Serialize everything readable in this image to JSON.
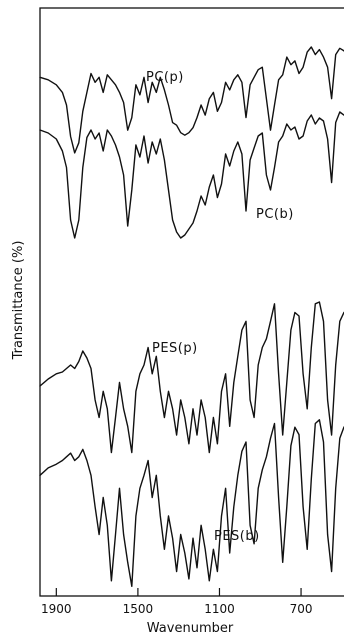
{
  "chart_data": {
    "type": "line",
    "xlabel": "Wavenumber",
    "ylabel": "Transmittance (%)",
    "xlim": [
      1980,
      460
    ],
    "x_ticks": [
      1900,
      1500,
      1100,
      700
    ],
    "x_tick_labels": [
      "1900",
      "1500",
      "1100",
      "700"
    ],
    "series": [
      {
        "name": "PC(p)",
        "label": "PC(p)",
        "x": [
          1980,
          1940,
          1900,
          1870,
          1850,
          1830,
          1810,
          1790,
          1770,
          1750,
          1730,
          1710,
          1690,
          1670,
          1650,
          1630,
          1610,
          1590,
          1570,
          1550,
          1530,
          1510,
          1490,
          1470,
          1450,
          1430,
          1410,
          1390,
          1370,
          1350,
          1330,
          1310,
          1290,
          1270,
          1250,
          1230,
          1210,
          1190,
          1170,
          1150,
          1130,
          1110,
          1090,
          1070,
          1050,
          1030,
          1010,
          990,
          970,
          950,
          930,
          910,
          890,
          870,
          850,
          830,
          810,
          790,
          770,
          750,
          730,
          710,
          690,
          670,
          650,
          630,
          610,
          590,
          570,
          550,
          530,
          510,
          490,
          470,
          460
        ],
        "y": [
          0.72,
          0.7,
          0.66,
          0.6,
          0.5,
          0.25,
          0.12,
          0.2,
          0.45,
          0.6,
          0.75,
          0.68,
          0.72,
          0.6,
          0.74,
          0.7,
          0.66,
          0.6,
          0.52,
          0.3,
          0.4,
          0.66,
          0.58,
          0.72,
          0.52,
          0.68,
          0.6,
          0.72,
          0.62,
          0.5,
          0.36,
          0.34,
          0.28,
          0.26,
          0.28,
          0.32,
          0.4,
          0.5,
          0.42,
          0.55,
          0.6,
          0.45,
          0.52,
          0.68,
          0.62,
          0.7,
          0.74,
          0.68,
          0.4,
          0.66,
          0.72,
          0.78,
          0.8,
          0.55,
          0.3,
          0.5,
          0.7,
          0.74,
          0.88,
          0.82,
          0.85,
          0.75,
          0.8,
          0.92,
          0.96,
          0.9,
          0.94,
          0.88,
          0.8,
          0.55,
          0.9,
          0.95,
          0.93,
          0.9,
          0.92
        ]
      },
      {
        "name": "PC(b)",
        "label": "PC(b)",
        "x": [
          1980,
          1940,
          1900,
          1870,
          1850,
          1830,
          1810,
          1790,
          1770,
          1750,
          1730,
          1710,
          1690,
          1670,
          1650,
          1630,
          1610,
          1590,
          1570,
          1550,
          1530,
          1510,
          1490,
          1470,
          1450,
          1430,
          1410,
          1390,
          1370,
          1350,
          1330,
          1310,
          1290,
          1270,
          1250,
          1230,
          1210,
          1190,
          1170,
          1150,
          1130,
          1110,
          1090,
          1070,
          1050,
          1030,
          1010,
          990,
          970,
          950,
          930,
          910,
          890,
          870,
          850,
          830,
          810,
          790,
          770,
          750,
          730,
          710,
          690,
          670,
          650,
          630,
          610,
          590,
          570,
          550,
          530,
          510,
          490,
          470,
          460
        ],
        "y": [
          0.8,
          0.78,
          0.74,
          0.66,
          0.55,
          0.2,
          0.08,
          0.2,
          0.55,
          0.75,
          0.8,
          0.74,
          0.78,
          0.66,
          0.8,
          0.76,
          0.7,
          0.62,
          0.5,
          0.16,
          0.4,
          0.7,
          0.62,
          0.76,
          0.58,
          0.72,
          0.64,
          0.74,
          0.6,
          0.4,
          0.2,
          0.12,
          0.08,
          0.1,
          0.14,
          0.18,
          0.26,
          0.36,
          0.3,
          0.42,
          0.5,
          0.35,
          0.44,
          0.64,
          0.56,
          0.66,
          0.72,
          0.64,
          0.26,
          0.6,
          0.68,
          0.76,
          0.78,
          0.5,
          0.4,
          0.55,
          0.72,
          0.76,
          0.84,
          0.8,
          0.82,
          0.74,
          0.76,
          0.86,
          0.9,
          0.84,
          0.88,
          0.86,
          0.74,
          0.45,
          0.85,
          0.92,
          0.9,
          0.9,
          0.92
        ]
      },
      {
        "name": "PES(p)",
        "label": "PES(p)",
        "x": [
          1980,
          1940,
          1900,
          1870,
          1850,
          1830,
          1810,
          1790,
          1770,
          1750,
          1730,
          1710,
          1690,
          1670,
          1650,
          1630,
          1610,
          1590,
          1570,
          1550,
          1530,
          1510,
          1490,
          1470,
          1450,
          1430,
          1410,
          1390,
          1370,
          1350,
          1330,
          1310,
          1290,
          1270,
          1250,
          1230,
          1210,
          1190,
          1170,
          1150,
          1130,
          1110,
          1090,
          1070,
          1050,
          1030,
          1010,
          990,
          970,
          950,
          930,
          910,
          890,
          870,
          850,
          830,
          810,
          790,
          770,
          750,
          730,
          710,
          690,
          670,
          650,
          630,
          610,
          590,
          570,
          550,
          530,
          510,
          490,
          470,
          460
        ],
        "y": [
          0.48,
          0.52,
          0.55,
          0.56,
          0.58,
          0.6,
          0.58,
          0.62,
          0.68,
          0.64,
          0.58,
          0.4,
          0.3,
          0.45,
          0.35,
          0.1,
          0.3,
          0.5,
          0.35,
          0.25,
          0.1,
          0.45,
          0.55,
          0.6,
          0.7,
          0.55,
          0.65,
          0.45,
          0.3,
          0.45,
          0.35,
          0.2,
          0.4,
          0.3,
          0.15,
          0.35,
          0.2,
          0.4,
          0.3,
          0.1,
          0.3,
          0.15,
          0.45,
          0.55,
          0.25,
          0.5,
          0.65,
          0.8,
          0.85,
          0.4,
          0.3,
          0.6,
          0.7,
          0.75,
          0.85,
          0.95,
          0.55,
          0.2,
          0.5,
          0.8,
          0.9,
          0.88,
          0.55,
          0.35,
          0.7,
          0.95,
          0.96,
          0.85,
          0.4,
          0.2,
          0.6,
          0.85,
          0.9,
          0.92,
          0.93
        ]
      },
      {
        "name": "PES(b)",
        "label": "PES(b)",
        "x": [
          1980,
          1940,
          1900,
          1870,
          1850,
          1830,
          1810,
          1790,
          1770,
          1750,
          1730,
          1710,
          1690,
          1670,
          1650,
          1630,
          1610,
          1590,
          1570,
          1550,
          1530,
          1510,
          1490,
          1470,
          1450,
          1430,
          1410,
          1390,
          1370,
          1350,
          1330,
          1310,
          1290,
          1270,
          1250,
          1230,
          1210,
          1190,
          1170,
          1150,
          1130,
          1110,
          1090,
          1070,
          1050,
          1030,
          1010,
          990,
          970,
          950,
          930,
          910,
          890,
          870,
          850,
          830,
          810,
          790,
          770,
          750,
          730,
          710,
          690,
          670,
          650,
          630,
          610,
          590,
          570,
          550,
          530,
          510,
          490,
          470,
          460
        ],
        "y": [
          0.62,
          0.66,
          0.68,
          0.7,
          0.72,
          0.74,
          0.7,
          0.72,
          0.76,
          0.7,
          0.62,
          0.45,
          0.3,
          0.5,
          0.35,
          0.05,
          0.3,
          0.55,
          0.3,
          0.15,
          0.02,
          0.4,
          0.55,
          0.62,
          0.7,
          0.5,
          0.62,
          0.4,
          0.22,
          0.4,
          0.28,
          0.1,
          0.3,
          0.2,
          0.06,
          0.28,
          0.12,
          0.35,
          0.22,
          0.05,
          0.22,
          0.1,
          0.4,
          0.55,
          0.2,
          0.45,
          0.62,
          0.75,
          0.8,
          0.35,
          0.25,
          0.55,
          0.65,
          0.72,
          0.82,
          0.9,
          0.5,
          0.15,
          0.45,
          0.78,
          0.88,
          0.84,
          0.45,
          0.22,
          0.6,
          0.9,
          0.92,
          0.8,
          0.3,
          0.1,
          0.55,
          0.82,
          0.88,
          0.9,
          0.92
        ]
      }
    ],
    "grid": false,
    "legend": "inline labels"
  }
}
